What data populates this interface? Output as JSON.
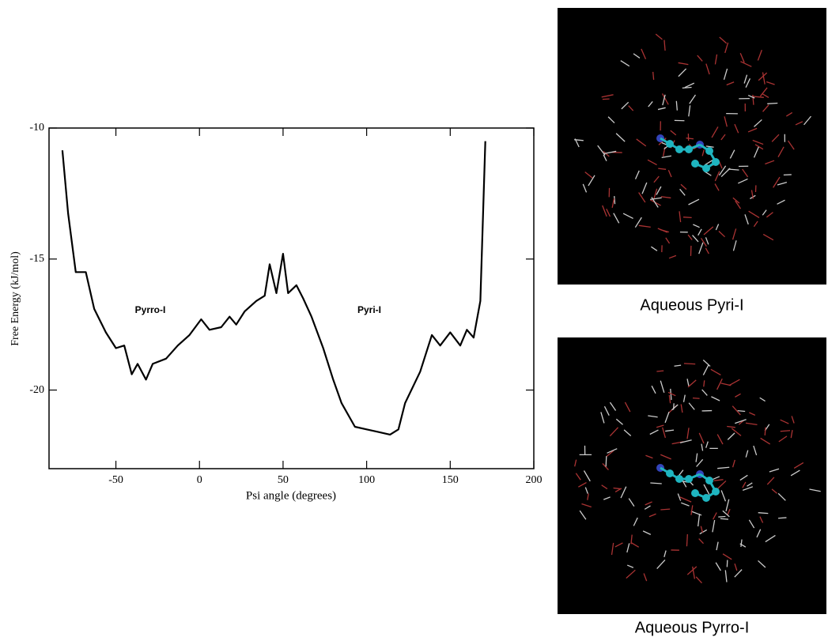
{
  "chart_data": {
    "type": "line",
    "xlabel": "Psi angle (degrees)",
    "ylabel": "Free Energy (kJ/mol)",
    "x": [
      -82,
      -78.6,
      -74,
      -68,
      -63,
      -56,
      -50,
      -45,
      -40.5,
      -37,
      -32,
      -28,
      -20,
      -13,
      -6,
      1,
      6,
      13,
      18,
      22,
      27,
      34,
      39,
      42,
      46,
      50,
      53,
      58,
      62,
      67,
      74,
      80,
      85,
      93,
      100,
      107,
      114,
      119,
      123,
      132,
      139,
      144,
      150,
      156,
      160,
      164,
      168,
      171
    ],
    "values": [
      -10.85,
      -13.25,
      -15.5,
      -15.5,
      -16.9,
      -17.8,
      -18.4,
      -18.3,
      -19.4,
      -19,
      -19.6,
      -19,
      -18.8,
      -18.3,
      -17.9,
      -17.3,
      -17.7,
      -17.6,
      -17.2,
      -17.5,
      -17,
      -16.6,
      -16.4,
      -15.2,
      -16.3,
      -14.8,
      -16.3,
      -16,
      -16.5,
      -17.2,
      -18.4,
      -19.6,
      -20.5,
      -21.4,
      -21.5,
      -21.6,
      -21.7,
      -21.5,
      -20.5,
      -19.3,
      -17.9,
      -18.3,
      -17.8,
      -18.3,
      -17.7,
      -18,
      -16.6,
      -10.5
    ],
    "color": "#000000",
    "xlim": [
      -90,
      200
    ],
    "xticks": [
      -50,
      0,
      50,
      100,
      150,
      200
    ],
    "ylim": [
      -23,
      -10
    ],
    "yticks": [
      -20,
      -15,
      -10
    ],
    "annotations": [
      "Pyrro-I",
      "Pyri-I"
    ]
  },
  "images": [
    {
      "caption": "Aqueous Pyri-I"
    },
    {
      "caption": "Aqueous Pyrro-I"
    }
  ]
}
